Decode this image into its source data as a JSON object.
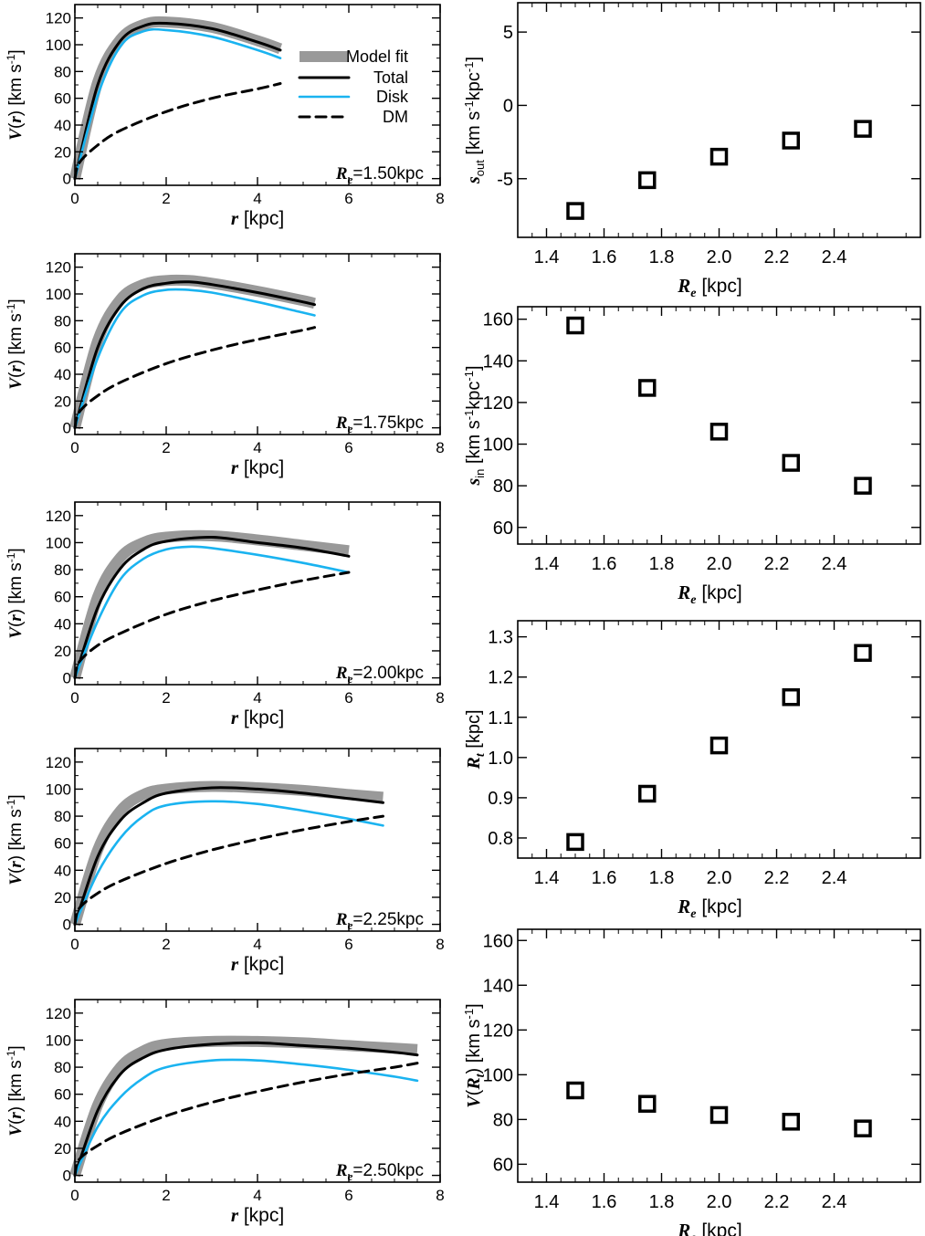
{
  "colors": {
    "model_fit": "#999999",
    "total": "#000000",
    "disk": "#1ab3f0",
    "dm": "#000000",
    "marker": "#000000"
  },
  "legend": {
    "model_fit": "Model fit",
    "total": "Total",
    "disk": "Disk",
    "dm": "DM"
  },
  "left_panel_text": {
    "ylabel": {
      "v": "V",
      "paren_open": "(",
      "r": "r",
      "rest": ") [km s",
      "sup": "-1",
      "close": "]"
    },
    "xlabel": {
      "r": "r",
      "rest": " [kpc]"
    }
  },
  "right_panel_text": {
    "xlabel": {
      "r": "R",
      "sub": "e",
      "rest": " [kpc]"
    },
    "p1_ylabel": {
      "s": "s",
      "sub": "out",
      "rest": " [km s",
      "sup1": "-1",
      "mid": "kpc",
      "sup2": "-1",
      "close": "]"
    },
    "p2_ylabel": {
      "s": "s",
      "sub": "in",
      "rest": " [km s",
      "sup1": "-1",
      "mid": "kpc",
      "sup2": "-1",
      "close": "]"
    },
    "p3_ylabel": {
      "r": "R",
      "sub": "t",
      "rest": " [kpc]"
    },
    "p4_ylabel": {
      "v": "V",
      "paren_open": "(",
      "r": "R",
      "sub": "t",
      "rest": ") [km s",
      "sup": "-1",
      "close": "]"
    }
  },
  "chart_data": [
    {
      "type": "line",
      "panel": "left-1",
      "re_label": {
        "r": "R",
        "sub": "e",
        "value": "=1.50kpc"
      },
      "xlim": [
        0,
        8
      ],
      "ylim": [
        -5,
        130
      ],
      "x_ticks": [
        "0",
        "2",
        "4",
        "6",
        "8"
      ],
      "y_ticks": [
        "0",
        "20",
        "40",
        "60",
        "80",
        "100",
        "120"
      ],
      "r_max": 4.5,
      "series": [
        {
          "name": "Model fit",
          "key": "model_fit",
          "x": [
            0,
            0.5,
            1,
            1.5,
            2,
            3,
            4,
            4.5
          ],
          "y": [
            0,
            72,
            104,
            115,
            117,
            113,
            103,
            97
          ],
          "width": 12
        },
        {
          "name": "Total",
          "key": "total",
          "x": [
            0,
            0.5,
            1,
            1.5,
            2,
            3,
            4,
            4.5
          ],
          "y": [
            0,
            70,
            103,
            114,
            116,
            112,
            102,
            96
          ]
        },
        {
          "name": "Disk",
          "key": "disk",
          "x": [
            0,
            0.5,
            1,
            1.5,
            2,
            3,
            4,
            4.5
          ],
          "y": [
            0,
            62,
            99,
            110,
            111,
            106,
            96,
            90
          ]
        },
        {
          "name": "DM",
          "key": "dm",
          "x": [
            0,
            0.1,
            0.5,
            1,
            2,
            3,
            4,
            4.5
          ],
          "y": [
            0,
            12,
            25,
            36,
            50,
            60,
            67,
            71
          ],
          "dashed": true
        }
      ]
    },
    {
      "type": "line",
      "panel": "left-2",
      "re_label": {
        "r": "R",
        "sub": "e",
        "value": "=1.75kpc"
      },
      "xlim": [
        0,
        8
      ],
      "ylim": [
        -5,
        130
      ],
      "x_ticks": [
        "0",
        "2",
        "4",
        "6",
        "8"
      ],
      "y_ticks": [
        "0",
        "20",
        "40",
        "60",
        "80",
        "100",
        "120"
      ],
      "r_max": 5.25,
      "series": [
        {
          "name": "Model fit",
          "key": "model_fit",
          "x": [
            0,
            0.5,
            1,
            1.5,
            2,
            2.5,
            3,
            4,
            5,
            5.25
          ],
          "y": [
            0,
            65,
            96,
            107,
            110,
            110,
            108,
            102,
            95,
            93
          ],
          "width": 12
        },
        {
          "name": "Total",
          "key": "total",
          "x": [
            0,
            0.5,
            1,
            1.5,
            2,
            2.5,
            3,
            4,
            5,
            5.25
          ],
          "y": [
            0,
            60,
            91,
            104,
            108,
            109,
            107,
            101,
            94,
            92
          ]
        },
        {
          "name": "Disk",
          "key": "disk",
          "x": [
            0,
            0.5,
            1,
            1.5,
            2,
            2.5,
            3,
            4,
            5,
            5.25
          ],
          "y": [
            0,
            52,
            86,
            99,
            103,
            103,
            101,
            94,
            86,
            84
          ]
        },
        {
          "name": "DM",
          "key": "dm",
          "x": [
            0,
            0.1,
            0.5,
            1,
            2,
            3,
            4,
            5,
            5.25
          ],
          "y": [
            0,
            12,
            24,
            34,
            48,
            58,
            66,
            73,
            75
          ],
          "dashed": true
        }
      ]
    },
    {
      "type": "line",
      "panel": "left-3",
      "re_label": {
        "r": "R",
        "sub": "e",
        "value": "=2.00kpc"
      },
      "xlim": [
        0,
        8
      ],
      "ylim": [
        -5,
        130
      ],
      "x_ticks": [
        "0",
        "2",
        "4",
        "6",
        "8"
      ],
      "y_ticks": [
        "0",
        "20",
        "40",
        "60",
        "80",
        "100",
        "120"
      ],
      "r_max": 6.0,
      "series": [
        {
          "name": "Model fit",
          "key": "model_fit",
          "x": [
            0,
            0.5,
            1,
            1.5,
            2,
            3,
            4,
            5,
            6
          ],
          "y": [
            0,
            60,
            89,
            100,
            104,
            105,
            102,
            98,
            94
          ],
          "width": 12
        },
        {
          "name": "Total",
          "key": "total",
          "x": [
            0,
            0.5,
            1,
            1.5,
            2,
            3,
            4,
            5,
            6
          ],
          "y": [
            0,
            52,
            81,
            95,
            101,
            104,
            100,
            96,
            90
          ]
        },
        {
          "name": "Disk",
          "key": "disk",
          "x": [
            0,
            0.5,
            1,
            1.5,
            2,
            2.5,
            3,
            4,
            5,
            6
          ],
          "y": [
            0,
            42,
            73,
            88,
            95,
            97,
            96,
            91,
            85,
            78
          ]
        },
        {
          "name": "DM",
          "key": "dm",
          "x": [
            0,
            0.1,
            0.5,
            1,
            2,
            3,
            4,
            5,
            6
          ],
          "y": [
            0,
            12,
            24,
            33,
            47,
            57,
            65,
            72,
            78
          ],
          "dashed": true
        }
      ]
    },
    {
      "type": "line",
      "panel": "left-4",
      "re_label": {
        "r": "R",
        "sub": "e",
        "value": "=2.25kpc"
      },
      "xlim": [
        0,
        8
      ],
      "ylim": [
        -5,
        130
      ],
      "x_ticks": [
        "0",
        "2",
        "4",
        "6",
        "8"
      ],
      "y_ticks": [
        "0",
        "20",
        "40",
        "60",
        "80",
        "100",
        "120"
      ],
      "r_max": 6.75,
      "series": [
        {
          "name": "Model fit",
          "key": "model_fit",
          "x": [
            0,
            0.5,
            1,
            1.5,
            2,
            3,
            4,
            5,
            6,
            6.75
          ],
          "y": [
            0,
            55,
            84,
            96,
            100,
            102,
            101,
            99,
            96,
            94
          ],
          "width": 12
        },
        {
          "name": "Total",
          "key": "total",
          "x": [
            0,
            0.5,
            1,
            1.5,
            2,
            3,
            4,
            5,
            6,
            6.75
          ],
          "y": [
            0,
            50,
            77,
            90,
            97,
            101,
            100,
            97,
            93,
            90
          ]
        },
        {
          "name": "Disk",
          "key": "disk",
          "x": [
            0,
            0.5,
            1,
            1.5,
            2,
            3,
            4,
            5,
            6,
            6.75
          ],
          "y": [
            0,
            38,
            64,
            80,
            88,
            91,
            89,
            84,
            78,
            73
          ]
        },
        {
          "name": "DM",
          "key": "dm",
          "x": [
            0,
            0.1,
            0.5,
            1,
            2,
            3,
            4,
            5,
            6,
            6.75
          ],
          "y": [
            0,
            12,
            23,
            32,
            45,
            55,
            63,
            70,
            76,
            80
          ],
          "dashed": true
        }
      ]
    },
    {
      "type": "line",
      "panel": "left-5",
      "re_label": {
        "r": "R",
        "sub": "e",
        "value": "=2.50kpc"
      },
      "xlim": [
        0,
        8
      ],
      "ylim": [
        -5,
        130
      ],
      "x_ticks": [
        "0",
        "2",
        "4",
        "6",
        "8"
      ],
      "y_ticks": [
        "0",
        "20",
        "40",
        "60",
        "80",
        "100",
        "120"
      ],
      "r_max": 7.5,
      "series": [
        {
          "name": "Model fit",
          "key": "model_fit",
          "x": [
            0,
            0.5,
            1,
            1.5,
            2,
            3,
            4,
            5,
            6,
            7,
            7.5
          ],
          "y": [
            0,
            52,
            80,
            92,
            97,
            99,
            99,
            98,
            96,
            94,
            93
          ],
          "width": 12
        },
        {
          "name": "Total",
          "key": "total",
          "x": [
            0,
            0.5,
            1,
            1.5,
            2,
            3,
            4,
            5,
            6,
            7,
            7.5
          ],
          "y": [
            0,
            48,
            75,
            87,
            93,
            97,
            98,
            96,
            94,
            91,
            89
          ]
        },
        {
          "name": "Disk",
          "key": "disk",
          "x": [
            0,
            0.5,
            1,
            1.5,
            2,
            3,
            4,
            5,
            6,
            7,
            7.5
          ],
          "y": [
            0,
            36,
            58,
            72,
            80,
            85,
            85,
            82,
            78,
            73,
            70
          ]
        },
        {
          "name": "DM",
          "key": "dm",
          "x": [
            0,
            0.1,
            0.5,
            1,
            2,
            3,
            4,
            5,
            6,
            7,
            7.5
          ],
          "y": [
            0,
            12,
            22,
            31,
            44,
            54,
            62,
            69,
            75,
            80,
            83
          ],
          "dashed": true
        }
      ]
    },
    {
      "type": "scatter",
      "panel": "right-1",
      "x": [
        1.5,
        1.75,
        2.0,
        2.25,
        2.5
      ],
      "y": [
        -7.2,
        -5.1,
        -3.5,
        -2.4,
        -1.6
      ],
      "xlim": [
        1.3,
        2.7
      ],
      "ylim": [
        -9,
        7
      ],
      "x_ticks": [
        "1.4",
        "1.6",
        "1.8",
        "2.0",
        "2.2",
        "2.4"
      ],
      "y_ticks": [
        "-5",
        "0",
        "5"
      ]
    },
    {
      "type": "scatter",
      "panel": "right-2",
      "x": [
        1.5,
        1.75,
        2.0,
        2.25,
        2.5
      ],
      "y": [
        157,
        127,
        106,
        91,
        80
      ],
      "xlim": [
        1.3,
        2.7
      ],
      "ylim": [
        52,
        166
      ],
      "x_ticks": [
        "1.4",
        "1.6",
        "1.8",
        "2.0",
        "2.2",
        "2.4"
      ],
      "y_ticks": [
        "60",
        "80",
        "100",
        "120",
        "140",
        "160"
      ]
    },
    {
      "type": "scatter",
      "panel": "right-3",
      "x": [
        1.5,
        1.75,
        2.0,
        2.25,
        2.5
      ],
      "y": [
        0.79,
        0.91,
        1.03,
        1.15,
        1.26
      ],
      "xlim": [
        1.3,
        2.7
      ],
      "ylim": [
        0.75,
        1.34
      ],
      "x_ticks": [
        "1.4",
        "1.6",
        "1.8",
        "2.0",
        "2.2",
        "2.4"
      ],
      "y_ticks": [
        "0.8",
        "0.9",
        "1.0",
        "1.1",
        "1.2",
        "1.3"
      ]
    },
    {
      "type": "scatter",
      "panel": "right-4",
      "x": [
        1.5,
        1.75,
        2.0,
        2.25,
        2.5
      ],
      "y": [
        93,
        87,
        82,
        79,
        76
      ],
      "xlim": [
        1.3,
        2.7
      ],
      "ylim": [
        52,
        165
      ],
      "x_ticks": [
        "1.4",
        "1.6",
        "1.8",
        "2.0",
        "2.2",
        "2.4"
      ],
      "y_ticks": [
        "60",
        "80",
        "100",
        "120",
        "140",
        "160"
      ]
    }
  ]
}
